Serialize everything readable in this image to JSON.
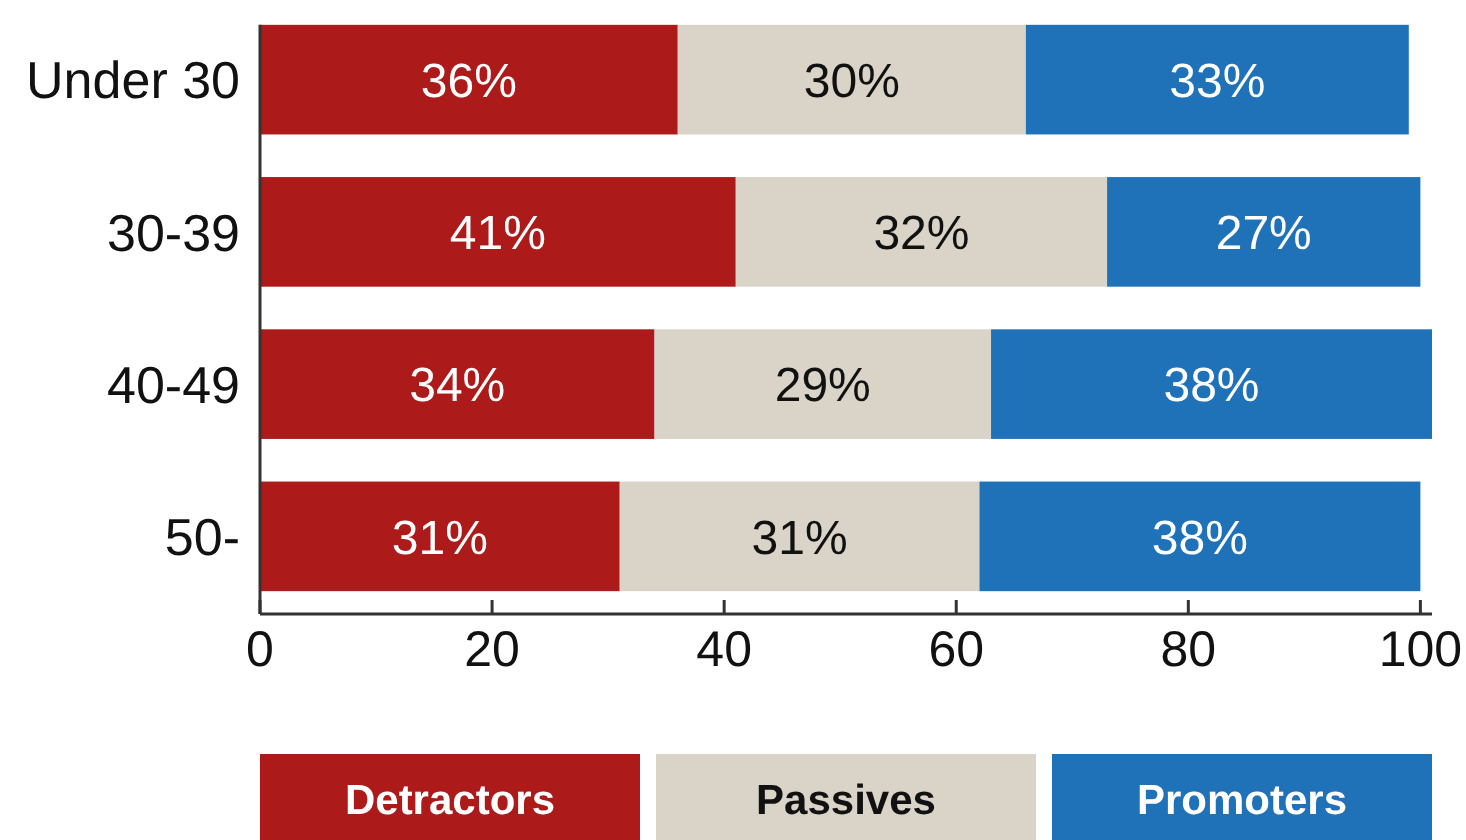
{
  "chart_data": {
    "type": "bar",
    "orientation": "horizontal",
    "stacked": true,
    "categories": [
      "Under 30",
      "30-39",
      "40-49",
      "50-"
    ],
    "series": [
      {
        "name": "Detractors",
        "color": "#ac1a1a",
        "values": [
          36,
          41,
          34,
          31
        ],
        "value_labels": [
          "36%",
          "41%",
          "34%",
          "31%"
        ]
      },
      {
        "name": "Passives",
        "color": "#d9d3c8",
        "values": [
          30,
          32,
          29,
          31
        ],
        "value_labels": [
          "30%",
          "32%",
          "29%",
          "31%"
        ]
      },
      {
        "name": "Promoters",
        "color": "#1f71b8",
        "values": [
          33,
          27,
          38,
          38
        ],
        "value_labels": [
          "33%",
          "27%",
          "38%",
          "38%"
        ]
      }
    ],
    "xlim": [
      0,
      101
    ],
    "xticks": [
      0,
      20,
      40,
      60,
      80,
      100
    ],
    "legend": "bottom"
  }
}
